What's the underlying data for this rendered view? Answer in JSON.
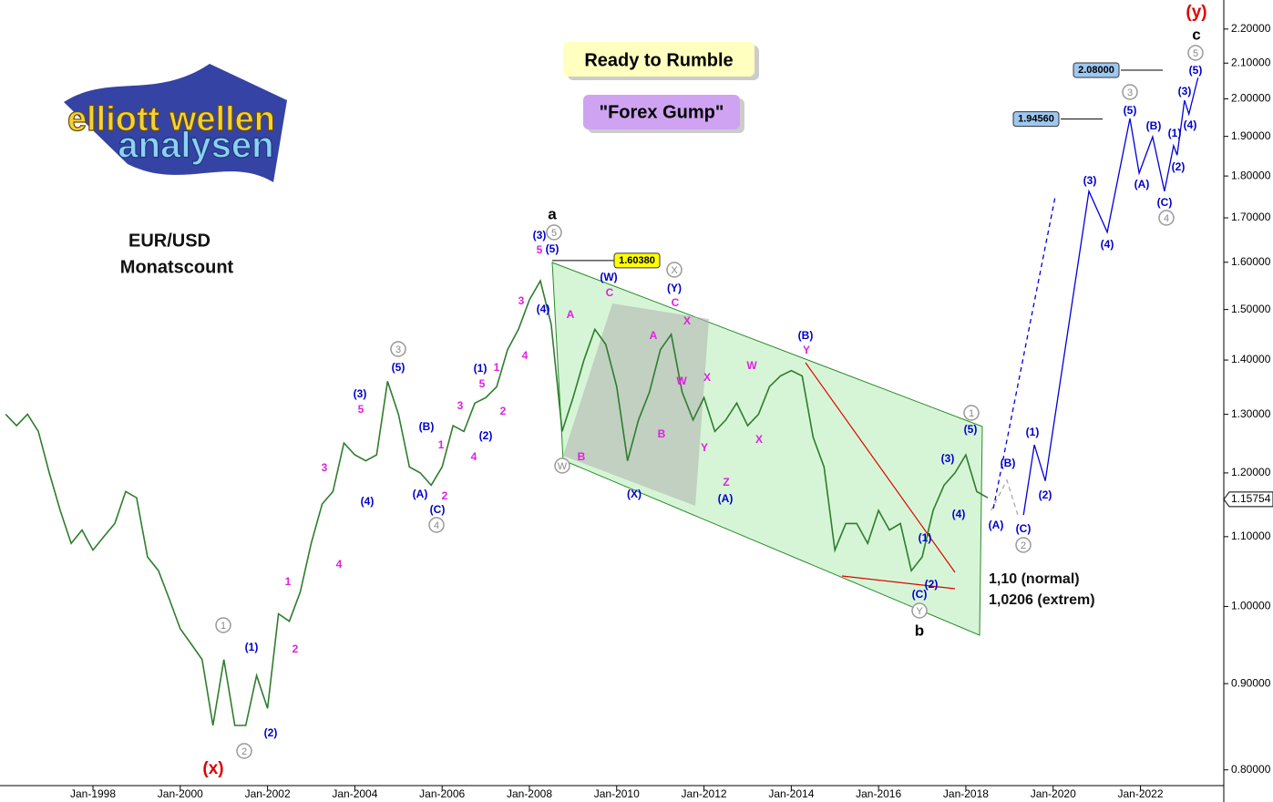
{
  "chart_data": {
    "type": "line",
    "log_scale": true,
    "xlim": [
      1995.87,
      2023.91
    ],
    "ylim": [
      0.783,
      2.289
    ],
    "xticks": [
      {
        "value": 1998,
        "label": "Jan-1998"
      },
      {
        "value": 2000,
        "label": "Jan-2000"
      },
      {
        "value": 2002,
        "label": "Jan-2002"
      },
      {
        "value": 2004,
        "label": "Jan-2004"
      },
      {
        "value": 2006,
        "label": "Jan-2006"
      },
      {
        "value": 2008,
        "label": "Jan-2008"
      },
      {
        "value": 2010,
        "label": "Jan-2010"
      },
      {
        "value": 2012,
        "label": "Jan-2012"
      },
      {
        "value": 2014,
        "label": "Jan-2014"
      },
      {
        "value": 2016,
        "label": "Jan-2016"
      },
      {
        "value": 2018,
        "label": "Jan-2018"
      },
      {
        "value": 2020,
        "label": "Jan-2020"
      },
      {
        "value": 2022,
        "label": "Jan-2022"
      }
    ],
    "yticks": [
      {
        "value": 0.8,
        "label": "0.80000"
      },
      {
        "value": 0.9,
        "label": "0.90000"
      },
      {
        "value": 1.0,
        "label": "1.00000"
      },
      {
        "value": 1.1,
        "label": "1.10000"
      },
      {
        "value": 1.2,
        "label": "1.20000"
      },
      {
        "value": 1.3,
        "label": "1.30000"
      },
      {
        "value": 1.4,
        "label": "1.40000"
      },
      {
        "value": 1.5,
        "label": "1.50000"
      },
      {
        "value": 1.6,
        "label": "1.60000"
      },
      {
        "value": 1.7,
        "label": "1.70000"
      },
      {
        "value": 1.8,
        "label": "1.80000"
      },
      {
        "value": 1.9,
        "label": "1.90000"
      },
      {
        "value": 2.0,
        "label": "2.00000"
      },
      {
        "value": 2.1,
        "label": "2.10000"
      },
      {
        "value": 2.2,
        "label": "2.20000"
      }
    ],
    "series": [
      {
        "color": "#2e7d2e",
        "x": [
          1996.0,
          1996.25,
          1996.5,
          1996.75,
          1997.0,
          1997.25,
          1997.5,
          1997.75,
          1998.0,
          1998.25,
          1998.5,
          1998.75,
          1999.0,
          1999.25,
          1999.5,
          1999.75,
          2000.0,
          2000.25,
          2000.5,
          2000.75,
          2001.0,
          2001.25,
          2001.5,
          2001.75,
          2002.0,
          2002.25,
          2002.5,
          2002.75,
          2003.0,
          2003.25,
          2003.5,
          2003.75,
          2004.0,
          2004.25,
          2004.5,
          2004.75,
          2005.0,
          2005.25,
          2005.5,
          2005.75,
          2006.0,
          2006.25,
          2006.5,
          2006.75,
          2007.0,
          2007.25,
          2007.5,
          2007.75,
          2008.0,
          2008.25,
          2008.5,
          2008.75,
          2009.0,
          2009.25,
          2009.5,
          2009.75,
          2010.0,
          2010.25,
          2010.5,
          2010.75,
          2011.0,
          2011.25,
          2011.5,
          2011.75,
          2012.0,
          2012.25,
          2012.5,
          2012.75,
          2013.0,
          2013.25,
          2013.5,
          2013.75,
          2014.0,
          2014.25,
          2014.5,
          2014.75,
          2015.0,
          2015.25,
          2015.5,
          2015.75,
          2016.0,
          2016.25,
          2016.5,
          2016.75,
          2017.0,
          2017.25,
          2017.5,
          2017.75,
          2018.0,
          2018.25,
          2018.5
        ],
        "values": [
          1.3,
          1.28,
          1.3,
          1.27,
          1.2,
          1.14,
          1.09,
          1.11,
          1.08,
          1.1,
          1.12,
          1.17,
          1.16,
          1.07,
          1.05,
          1.01,
          0.97,
          0.95,
          0.93,
          0.85,
          0.93,
          0.85,
          0.85,
          0.91,
          0.87,
          0.99,
          0.98,
          1.02,
          1.09,
          1.15,
          1.17,
          1.25,
          1.23,
          1.22,
          1.23,
          1.36,
          1.3,
          1.21,
          1.2,
          1.18,
          1.21,
          1.28,
          1.27,
          1.32,
          1.33,
          1.35,
          1.42,
          1.46,
          1.52,
          1.56,
          1.47,
          1.27,
          1.33,
          1.4,
          1.46,
          1.43,
          1.35,
          1.22,
          1.29,
          1.34,
          1.42,
          1.45,
          1.34,
          1.29,
          1.33,
          1.27,
          1.29,
          1.32,
          1.28,
          1.3,
          1.35,
          1.37,
          1.38,
          1.37,
          1.26,
          1.21,
          1.08,
          1.12,
          1.12,
          1.09,
          1.14,
          1.11,
          1.12,
          1.05,
          1.07,
          1.14,
          1.18,
          1.2,
          1.23,
          1.17,
          1.16
        ]
      },
      {
        "color": "#0000dd",
        "x": [
          2019.32,
          2019.57,
          2019.82,
          2020.82,
          2021.24,
          2021.76,
          2021.97,
          2022.28,
          2022.55,
          2022.76,
          2022.84,
          2023.01,
          2023.11,
          2023.32
        ],
        "values": [
          1.133,
          1.247,
          1.187,
          1.763,
          1.667,
          1.947,
          1.807,
          1.899,
          1.763,
          1.876,
          1.852,
          1.996,
          1.959,
          2.059
        ]
      },
      {
        "color": "#aaaaaa",
        "dash": true,
        "x": [
          2018.58,
          2018.94,
          2019.19
        ],
        "values": [
          1.14,
          1.188,
          1.133
        ]
      },
      {
        "color": "#0000dd",
        "dash": true,
        "x": [
          2018.63,
          2020.05
        ],
        "values": [
          1.143,
          1.751
        ]
      }
    ],
    "current_price": {
      "value": 1.15754,
      "label": "1.15754"
    },
    "price_marks": [
      {
        "value": 1.6038,
        "label": "1.60380",
        "color": "#ffff00"
      },
      {
        "value": 1.9456,
        "label": "1.94560",
        "color": "#9fc8f0"
      },
      {
        "value": 2.08,
        "label": "2.08000",
        "color": "#9fc8f0"
      }
    ],
    "title_lines": [
      "EUR/USD",
      "Monatscount"
    ],
    "boxes": [
      "Ready to Rumble",
      "\"Forex Gump\""
    ],
    "targets": [
      "1,10 (normal)",
      "1,0206 (extrem)"
    ],
    "logo": [
      "elliott wellen",
      "analysen"
    ],
    "annotations": [
      {
        "text": "(3)",
        "style": "blue"
      },
      {
        "text": "(5)",
        "style": "blue"
      },
      {
        "text": "(4)",
        "style": "blue"
      },
      {
        "text": "(W)",
        "style": "blue"
      },
      {
        "text": "(Y)",
        "style": "blue"
      },
      {
        "text": "(X)",
        "style": "blue"
      },
      {
        "text": "(B)",
        "style": "blue"
      },
      {
        "text": "(A)",
        "style": "blue"
      },
      {
        "text": "(5)",
        "style": "blue"
      },
      {
        "text": "(3)",
        "style": "blue"
      },
      {
        "text": "(4)",
        "style": "blue"
      },
      {
        "text": "(1)",
        "style": "blue"
      },
      {
        "text": "(2)",
        "style": "blue"
      },
      {
        "text": "(C)",
        "style": "blue"
      },
      {
        "text": "(B)",
        "style": "blue"
      },
      {
        "text": "(A)",
        "style": "blue"
      },
      {
        "text": "(C)",
        "style": "blue"
      },
      {
        "text": "(1)",
        "style": "blue"
      },
      {
        "text": "(2)",
        "style": "blue"
      },
      {
        "text": "(3)",
        "style": "blue"
      },
      {
        "text": "(4)",
        "style": "blue"
      },
      {
        "text": "(5)",
        "style": "blue"
      },
      {
        "text": "(A)",
        "style": "blue"
      },
      {
        "text": "(B)",
        "style": "blue"
      },
      {
        "text": "(C)",
        "style": "blue"
      },
      {
        "text": "(1)",
        "style": "blue"
      },
      {
        "text": "(2)",
        "style": "blue"
      },
      {
        "text": "(3)",
        "style": "blue"
      },
      {
        "text": "(4)",
        "style": "blue"
      },
      {
        "text": "(5)",
        "style": "blue"
      },
      {
        "text": "(5)",
        "style": "blue"
      },
      {
        "text": "(3)",
        "style": "blue"
      },
      {
        "text": "(4)",
        "style": "blue"
      },
      {
        "text": "(B)",
        "style": "blue"
      },
      {
        "text": "(A)",
        "style": "blue"
      },
      {
        "text": "(C)",
        "style": "blue"
      },
      {
        "text": "(1)",
        "style": "blue"
      },
      {
        "text": "(2)",
        "style": "blue"
      },
      {
        "text": "(1)",
        "style": "blue"
      },
      {
        "text": "(2)",
        "style": "blue"
      },
      {
        "text": "5",
        "style": "magenta"
      },
      {
        "text": "3",
        "style": "magenta"
      },
      {
        "text": "4",
        "style": "magenta"
      },
      {
        "text": "1",
        "style": "magenta"
      },
      {
        "text": "5",
        "style": "magenta"
      },
      {
        "text": "3",
        "style": "magenta"
      },
      {
        "text": "2",
        "style": "magenta"
      },
      {
        "text": "4",
        "style": "magenta"
      },
      {
        "text": "1",
        "style": "magenta"
      },
      {
        "text": "2",
        "style": "magenta"
      },
      {
        "text": "3",
        "style": "magenta"
      },
      {
        "text": "5",
        "style": "magenta"
      },
      {
        "text": "4",
        "style": "magenta"
      },
      {
        "text": "1",
        "style": "magenta"
      },
      {
        "text": "2",
        "style": "magenta"
      },
      {
        "text": "A",
        "style": "magenta"
      },
      {
        "text": "B",
        "style": "magenta"
      },
      {
        "text": "C",
        "style": "magenta"
      },
      {
        "text": "A",
        "style": "magenta"
      },
      {
        "text": "B",
        "style": "magenta"
      },
      {
        "text": "C",
        "style": "magenta"
      },
      {
        "text": "X",
        "style": "magenta"
      },
      {
        "text": "W",
        "style": "magenta"
      },
      {
        "text": "X",
        "style": "magenta"
      },
      {
        "text": "Y",
        "style": "magenta"
      },
      {
        "text": "Z",
        "style": "magenta"
      },
      {
        "text": "W",
        "style": "magenta"
      },
      {
        "text": "X",
        "style": "magenta"
      },
      {
        "text": "Y",
        "style": "magenta"
      },
      {
        "text": "5",
        "style": "gray"
      },
      {
        "text": "3",
        "style": "gray"
      },
      {
        "text": "4",
        "style": "gray"
      },
      {
        "text": "1",
        "style": "gray"
      },
      {
        "text": "2",
        "style": "gray"
      },
      {
        "text": "W",
        "style": "gray"
      },
      {
        "text": "X",
        "style": "gray"
      },
      {
        "text": "1",
        "style": "gray"
      },
      {
        "text": "Y",
        "style": "gray"
      },
      {
        "text": "2",
        "style": "gray"
      },
      {
        "text": "3",
        "style": "gray"
      },
      {
        "text": "4",
        "style": "gray"
      },
      {
        "text": "5",
        "style": "gray"
      },
      {
        "text": "a",
        "style": "black"
      },
      {
        "text": "b",
        "style": "black"
      },
      {
        "text": "c",
        "style": "black"
      },
      {
        "text": "(x)",
        "style": "red"
      },
      {
        "text": "(y)",
        "style": "red"
      }
    ]
  }
}
